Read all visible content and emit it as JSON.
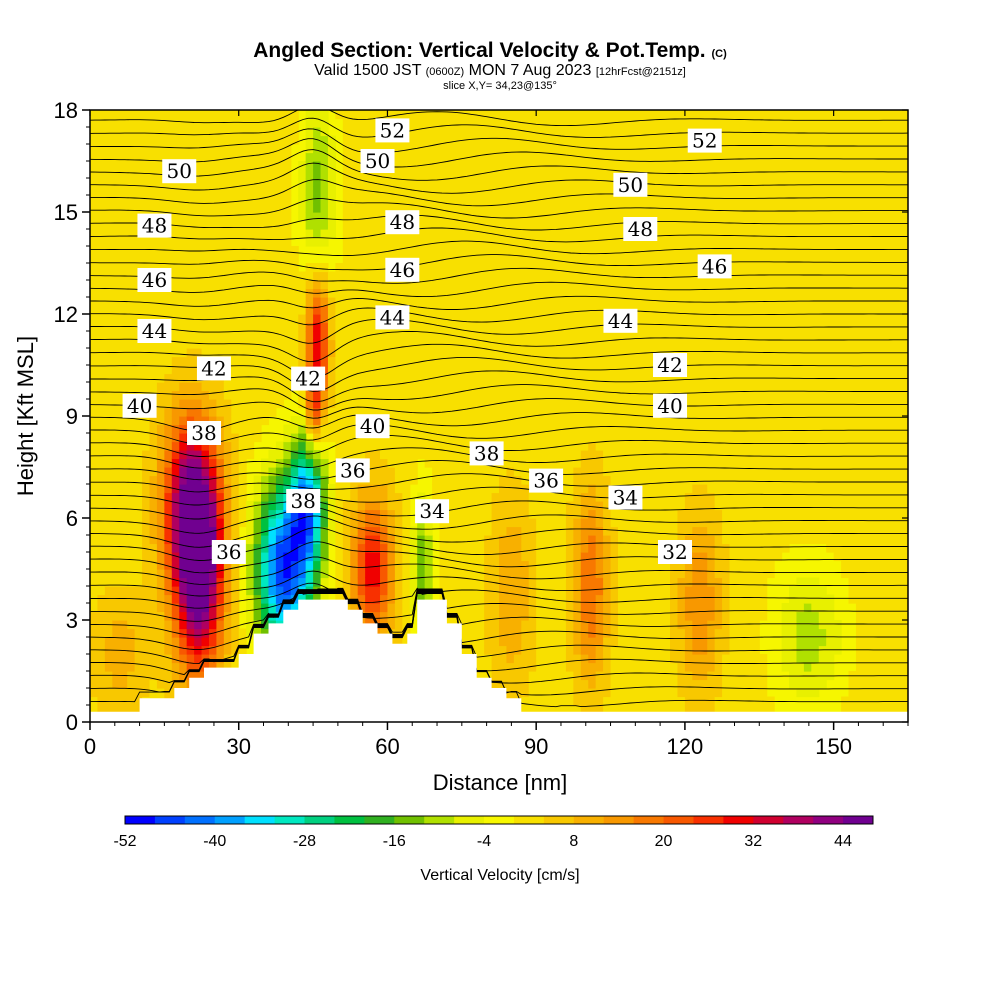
{
  "title": {
    "main": "Angled Section: Vertical Velocity & Pot.Temp.",
    "main_note": "(C)",
    "valid_prefix": "Valid 1500 JST",
    "valid_z": "(0600Z)",
    "valid_date": "MON 7 Aug 2023",
    "fcst": "[12hrFcst@2151z]",
    "slice": "slice X,Y= 34,23@135°"
  },
  "colors": {
    "background_field": "#f6f600",
    "terrain": "#ffffff",
    "contour": "#000000",
    "colorbar": [
      "#0000ff",
      "#0040ff",
      "#0070ff",
      "#00a0ff",
      "#00e0ff",
      "#00e8c0",
      "#00d080",
      "#00c040",
      "#30b020",
      "#70c000",
      "#b0e000",
      "#e8f000",
      "#f8f800",
      "#f8e000",
      "#f8c800",
      "#f8b000",
      "#f89800",
      "#f87800",
      "#f85800",
      "#f83000",
      "#f00000",
      "#d00030",
      "#b00060",
      "#900080",
      "#700090"
    ]
  },
  "chart_data": {
    "type": "heatmap",
    "title": "Angled Section: Vertical Velocity & Pot.Temp.",
    "xlabel": "Distance [nm]",
    "ylabel": "Height [Kft MSL]",
    "xlim": [
      0,
      165
    ],
    "ylim": [
      0,
      18
    ],
    "xticks": [
      "0",
      "30",
      "60",
      "90",
      "120",
      "150"
    ],
    "yticks": [
      "0",
      "3",
      "6",
      "9",
      "12",
      "15",
      "18"
    ],
    "colorbar_label": "Vertical Velocity [cm/s]",
    "colorbar_ticks": [
      "-52",
      "-40",
      "-28",
      "-16",
      "-4",
      "8",
      "20",
      "32",
      "44"
    ],
    "colorbar_range": [
      -52,
      48
    ],
    "colorbar_step": 4,
    "terrain_profile": [
      [
        0,
        0.3
      ],
      [
        10,
        0.3
      ],
      [
        10,
        0.7
      ],
      [
        17,
        0.7
      ],
      [
        17,
        1.0
      ],
      [
        20,
        1.0
      ],
      [
        20,
        1.3
      ],
      [
        23,
        1.3
      ],
      [
        23,
        1.6
      ],
      [
        30,
        1.6
      ],
      [
        30,
        2.0
      ],
      [
        33,
        2.0
      ],
      [
        33,
        2.6
      ],
      [
        36,
        2.6
      ],
      [
        36,
        2.9
      ],
      [
        39,
        2.9
      ],
      [
        39,
        3.3
      ],
      [
        42,
        3.3
      ],
      [
        42,
        3.6
      ],
      [
        52,
        3.6
      ],
      [
        52,
        3.3
      ],
      [
        55,
        3.3
      ],
      [
        55,
        2.9
      ],
      [
        58,
        2.9
      ],
      [
        58,
        2.6
      ],
      [
        61,
        2.6
      ],
      [
        61,
        2.3
      ],
      [
        64,
        2.3
      ],
      [
        64,
        2.6
      ],
      [
        66,
        2.6
      ],
      [
        66,
        3.6
      ],
      [
        72,
        3.6
      ],
      [
        72,
        2.9
      ],
      [
        75,
        2.9
      ],
      [
        75,
        2.0
      ],
      [
        78,
        2.0
      ],
      [
        78,
        1.3
      ],
      [
        81,
        1.3
      ],
      [
        81,
        1.0
      ],
      [
        84,
        1.0
      ],
      [
        84,
        0.7
      ],
      [
        87,
        0.7
      ],
      [
        87,
        0.3
      ],
      [
        165,
        0.3
      ]
    ],
    "velocity_features": [
      {
        "x": 22,
        "y": 4.5,
        "sx": 3.5,
        "sy": 2.2,
        "value": 46
      },
      {
        "x": 20,
        "y": 6.5,
        "sx": 4.0,
        "sy": 1.8,
        "value": 30
      },
      {
        "x": 46,
        "y": 11.2,
        "sx": 1.6,
        "sy": 1.5,
        "value": 30
      },
      {
        "x": 45,
        "y": 9.0,
        "sx": 1.2,
        "sy": 1.0,
        "value": 18
      },
      {
        "x": 39,
        "y": 4.5,
        "sx": 4.0,
        "sy": 1.8,
        "value": -48
      },
      {
        "x": 44,
        "y": 6.5,
        "sx": 2.5,
        "sy": 1.5,
        "value": -36
      },
      {
        "x": 46,
        "y": 15.5,
        "sx": 2.5,
        "sy": 2.0,
        "value": -16
      },
      {
        "x": 57,
        "y": 4.5,
        "sx": 3.0,
        "sy": 1.5,
        "value": 28
      },
      {
        "x": 67,
        "y": 4.5,
        "sx": 1.5,
        "sy": 1.5,
        "value": -18
      },
      {
        "x": 85,
        "y": 3.8,
        "sx": 3.0,
        "sy": 2.0,
        "value": 10
      },
      {
        "x": 101,
        "y": 4.0,
        "sx": 2.5,
        "sy": 2.0,
        "value": 18
      },
      {
        "x": 123,
        "y": 3.5,
        "sx": 3.0,
        "sy": 1.8,
        "value": 14
      },
      {
        "x": 145,
        "y": 2.5,
        "sx": 5.0,
        "sy": 1.5,
        "value": -12
      },
      {
        "x": 6,
        "y": 2.0,
        "sx": 4.0,
        "sy": 1.2,
        "value": 8
      }
    ],
    "theta_labels": [
      {
        "text": "52",
        "x": 61,
        "y": 17.4
      },
      {
        "text": "52",
        "x": 124,
        "y": 17.1
      },
      {
        "text": "50",
        "x": 18,
        "y": 16.2
      },
      {
        "text": "50",
        "x": 58,
        "y": 16.5
      },
      {
        "text": "50",
        "x": 109,
        "y": 15.8
      },
      {
        "text": "48",
        "x": 13,
        "y": 14.6
      },
      {
        "text": "48",
        "x": 63,
        "y": 14.7
      },
      {
        "text": "48",
        "x": 111,
        "y": 14.5
      },
      {
        "text": "46",
        "x": 13,
        "y": 13.0
      },
      {
        "text": "46",
        "x": 63,
        "y": 13.3
      },
      {
        "text": "46",
        "x": 126,
        "y": 13.4
      },
      {
        "text": "44",
        "x": 13,
        "y": 11.5
      },
      {
        "text": "44",
        "x": 61,
        "y": 11.9
      },
      {
        "text": "44",
        "x": 107,
        "y": 11.8
      },
      {
        "text": "42",
        "x": 25,
        "y": 10.4
      },
      {
        "text": "42",
        "x": 44,
        "y": 10.1
      },
      {
        "text": "42",
        "x": 117,
        "y": 10.5
      },
      {
        "text": "40",
        "x": 10,
        "y": 9.3
      },
      {
        "text": "40",
        "x": 57,
        "y": 8.7
      },
      {
        "text": "40",
        "x": 117,
        "y": 9.3
      },
      {
        "text": "38",
        "x": 23,
        "y": 8.5
      },
      {
        "text": "38",
        "x": 43,
        "y": 6.5
      },
      {
        "text": "38",
        "x": 80,
        "y": 7.9
      },
      {
        "text": "36",
        "x": 53,
        "y": 7.4
      },
      {
        "text": "36",
        "x": 92,
        "y": 7.1
      },
      {
        "text": "36",
        "x": 28,
        "y": 5.0
      },
      {
        "text": "34",
        "x": 69,
        "y": 6.2
      },
      {
        "text": "34",
        "x": 108,
        "y": 6.6
      },
      {
        "text": "32",
        "x": 118,
        "y": 5.0
      }
    ]
  }
}
